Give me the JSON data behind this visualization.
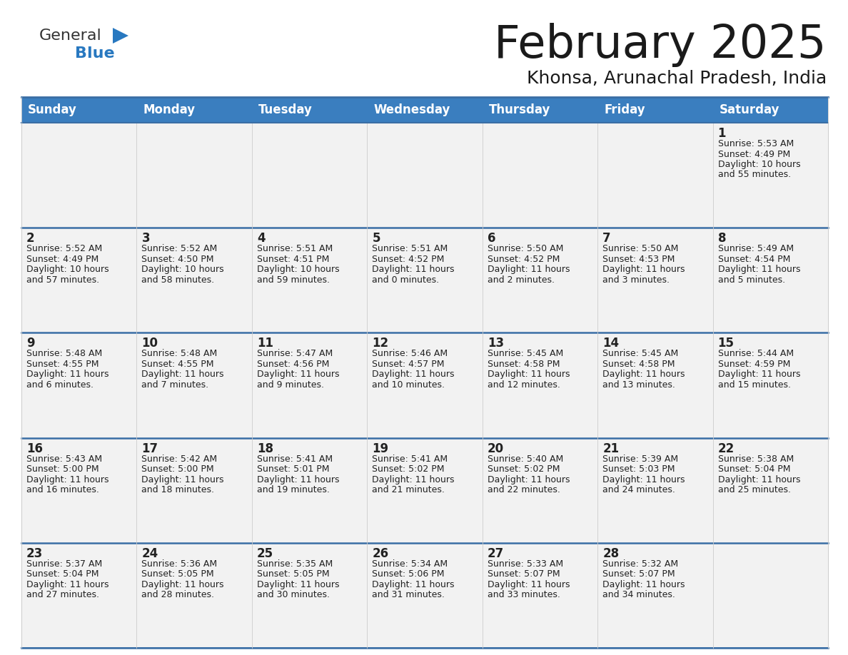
{
  "title": "February 2025",
  "subtitle": "Khonsa, Arunachal Pradesh, India",
  "days_of_week": [
    "Sunday",
    "Monday",
    "Tuesday",
    "Wednesday",
    "Thursday",
    "Friday",
    "Saturday"
  ],
  "header_bg": "#3a7ebf",
  "header_text": "#ffffff",
  "cell_bg": "#f2f2f2",
  "cell_text": "#222222",
  "border_color": "#3a6ea5",
  "title_color": "#1a1a1a",
  "subtitle_color": "#1a1a1a",
  "logo_text_color": "#333333",
  "logo_blue_color": "#2878c0",
  "calendar_data": [
    [
      {
        "day": null,
        "sunrise": null,
        "sunset": null,
        "daylight": null
      },
      {
        "day": null,
        "sunrise": null,
        "sunset": null,
        "daylight": null
      },
      {
        "day": null,
        "sunrise": null,
        "sunset": null,
        "daylight": null
      },
      {
        "day": null,
        "sunrise": null,
        "sunset": null,
        "daylight": null
      },
      {
        "day": null,
        "sunrise": null,
        "sunset": null,
        "daylight": null
      },
      {
        "day": null,
        "sunrise": null,
        "sunset": null,
        "daylight": null
      },
      {
        "day": 1,
        "sunrise": "5:53 AM",
        "sunset": "4:49 PM",
        "daylight": "10 hours\nand 55 minutes."
      }
    ],
    [
      {
        "day": 2,
        "sunrise": "5:52 AM",
        "sunset": "4:49 PM",
        "daylight": "10 hours\nand 57 minutes."
      },
      {
        "day": 3,
        "sunrise": "5:52 AM",
        "sunset": "4:50 PM",
        "daylight": "10 hours\nand 58 minutes."
      },
      {
        "day": 4,
        "sunrise": "5:51 AM",
        "sunset": "4:51 PM",
        "daylight": "10 hours\nand 59 minutes."
      },
      {
        "day": 5,
        "sunrise": "5:51 AM",
        "sunset": "4:52 PM",
        "daylight": "11 hours\nand 0 minutes."
      },
      {
        "day": 6,
        "sunrise": "5:50 AM",
        "sunset": "4:52 PM",
        "daylight": "11 hours\nand 2 minutes."
      },
      {
        "day": 7,
        "sunrise": "5:50 AM",
        "sunset": "4:53 PM",
        "daylight": "11 hours\nand 3 minutes."
      },
      {
        "day": 8,
        "sunrise": "5:49 AM",
        "sunset": "4:54 PM",
        "daylight": "11 hours\nand 5 minutes."
      }
    ],
    [
      {
        "day": 9,
        "sunrise": "5:48 AM",
        "sunset": "4:55 PM",
        "daylight": "11 hours\nand 6 minutes."
      },
      {
        "day": 10,
        "sunrise": "5:48 AM",
        "sunset": "4:55 PM",
        "daylight": "11 hours\nand 7 minutes."
      },
      {
        "day": 11,
        "sunrise": "5:47 AM",
        "sunset": "4:56 PM",
        "daylight": "11 hours\nand 9 minutes."
      },
      {
        "day": 12,
        "sunrise": "5:46 AM",
        "sunset": "4:57 PM",
        "daylight": "11 hours\nand 10 minutes."
      },
      {
        "day": 13,
        "sunrise": "5:45 AM",
        "sunset": "4:58 PM",
        "daylight": "11 hours\nand 12 minutes."
      },
      {
        "day": 14,
        "sunrise": "5:45 AM",
        "sunset": "4:58 PM",
        "daylight": "11 hours\nand 13 minutes."
      },
      {
        "day": 15,
        "sunrise": "5:44 AM",
        "sunset": "4:59 PM",
        "daylight": "11 hours\nand 15 minutes."
      }
    ],
    [
      {
        "day": 16,
        "sunrise": "5:43 AM",
        "sunset": "5:00 PM",
        "daylight": "11 hours\nand 16 minutes."
      },
      {
        "day": 17,
        "sunrise": "5:42 AM",
        "sunset": "5:00 PM",
        "daylight": "11 hours\nand 18 minutes."
      },
      {
        "day": 18,
        "sunrise": "5:41 AM",
        "sunset": "5:01 PM",
        "daylight": "11 hours\nand 19 minutes."
      },
      {
        "day": 19,
        "sunrise": "5:41 AM",
        "sunset": "5:02 PM",
        "daylight": "11 hours\nand 21 minutes."
      },
      {
        "day": 20,
        "sunrise": "5:40 AM",
        "sunset": "5:02 PM",
        "daylight": "11 hours\nand 22 minutes."
      },
      {
        "day": 21,
        "sunrise": "5:39 AM",
        "sunset": "5:03 PM",
        "daylight": "11 hours\nand 24 minutes."
      },
      {
        "day": 22,
        "sunrise": "5:38 AM",
        "sunset": "5:04 PM",
        "daylight": "11 hours\nand 25 minutes."
      }
    ],
    [
      {
        "day": 23,
        "sunrise": "5:37 AM",
        "sunset": "5:04 PM",
        "daylight": "11 hours\nand 27 minutes."
      },
      {
        "day": 24,
        "sunrise": "5:36 AM",
        "sunset": "5:05 PM",
        "daylight": "11 hours\nand 28 minutes."
      },
      {
        "day": 25,
        "sunrise": "5:35 AM",
        "sunset": "5:05 PM",
        "daylight": "11 hours\nand 30 minutes."
      },
      {
        "day": 26,
        "sunrise": "5:34 AM",
        "sunset": "5:06 PM",
        "daylight": "11 hours\nand 31 minutes."
      },
      {
        "day": 27,
        "sunrise": "5:33 AM",
        "sunset": "5:07 PM",
        "daylight": "11 hours\nand 33 minutes."
      },
      {
        "day": 28,
        "sunrise": "5:32 AM",
        "sunset": "5:07 PM",
        "daylight": "11 hours\nand 34 minutes."
      },
      {
        "day": null,
        "sunrise": null,
        "sunset": null,
        "daylight": null
      }
    ]
  ]
}
